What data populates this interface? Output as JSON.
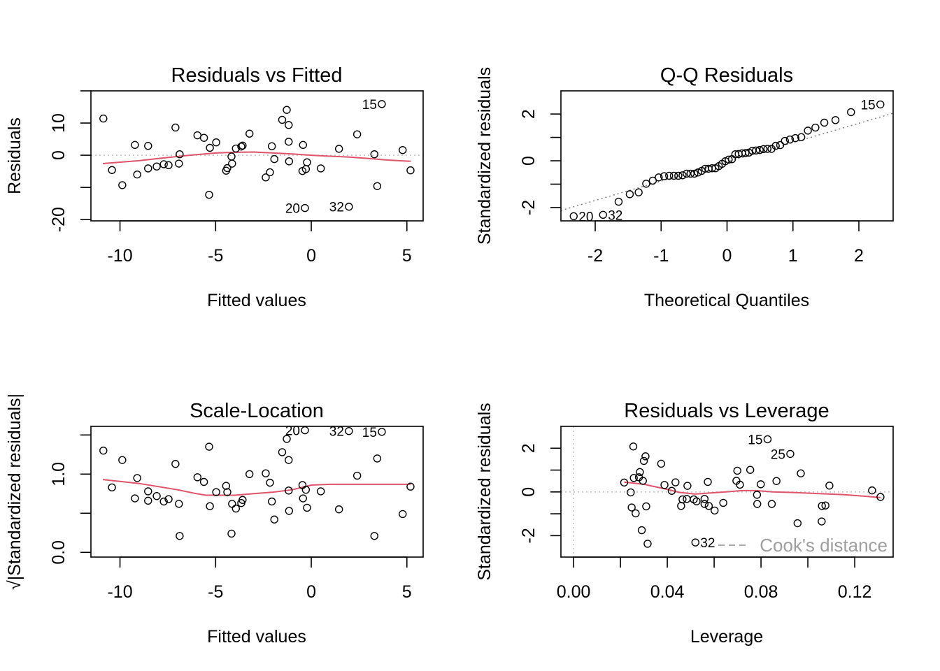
{
  "chart_data": [
    {
      "type": "scatter",
      "title": "Residuals vs Fitted",
      "xlabel": "Fitted values",
      "ylabel": "Residuals",
      "xlim": [
        -11.52,
        5.85
      ],
      "ylim": [
        -20.4,
        20.0
      ],
      "xticks": [
        -10,
        -5,
        0,
        5
      ],
      "xtick_labels": [
        "-10",
        "-5",
        "0",
        "5"
      ],
      "yticks": [
        -20,
        -10,
        0,
        10,
        20
      ],
      "ytick_labels": [
        "-20",
        "",
        "0",
        "10",
        ""
      ],
      "reference_line": {
        "type": "horizontal",
        "y": 0,
        "style": "dotted",
        "color": "#bebebe"
      },
      "smoother_color": "#df536b",
      "smoother": [
        [
          -10.9,
          -2.6
        ],
        [
          -9,
          -1.7
        ],
        [
          -8,
          -1.0
        ],
        [
          -6.5,
          -0.1
        ],
        [
          -5,
          0.7
        ],
        [
          -4,
          0.9
        ],
        [
          -3,
          1.0
        ],
        [
          -2,
          0.7
        ],
        [
          -1,
          0.4
        ],
        [
          0,
          0.0
        ],
        [
          1,
          -0.3
        ],
        [
          2,
          -0.6
        ],
        [
          3,
          -1.0
        ],
        [
          4,
          -1.5
        ],
        [
          5.2,
          -1.9
        ]
      ],
      "points": [
        {
          "x": -10.87,
          "y": 11.4
        },
        {
          "x": -10.42,
          "y": -4.6
        },
        {
          "x": -9.88,
          "y": -9.3
        },
        {
          "x": -9.22,
          "y": 3.2
        },
        {
          "x": -9.1,
          "y": -6.0
        },
        {
          "x": -8.53,
          "y": 2.9
        },
        {
          "x": -8.53,
          "y": -4.1
        },
        {
          "x": -8.08,
          "y": -3.5
        },
        {
          "x": -7.71,
          "y": -2.8
        },
        {
          "x": -7.46,
          "y": -3.1
        },
        {
          "x": -7.1,
          "y": 8.6
        },
        {
          "x": -6.88,
          "y": 0.3
        },
        {
          "x": -6.92,
          "y": -2.6
        },
        {
          "x": -5.95,
          "y": 6.2
        },
        {
          "x": -5.61,
          "y": 5.4
        },
        {
          "x": -5.34,
          "y": -12.3
        },
        {
          "x": -5.3,
          "y": 2.3
        },
        {
          "x": -4.97,
          "y": 4.0
        },
        {
          "x": -4.45,
          "y": -4.8
        },
        {
          "x": -4.39,
          "y": -4.0
        },
        {
          "x": -4.17,
          "y": -0.4
        },
        {
          "x": -4.14,
          "y": -2.6
        },
        {
          "x": -3.94,
          "y": 2.1
        },
        {
          "x": -3.66,
          "y": 2.7
        },
        {
          "x": -3.59,
          "y": 3.0
        },
        {
          "x": -3.23,
          "y": 6.7
        },
        {
          "x": -2.38,
          "y": -6.9
        },
        {
          "x": -2.16,
          "y": -5.3
        },
        {
          "x": -2.06,
          "y": 2.8
        },
        {
          "x": -1.93,
          "y": -1.2
        },
        {
          "x": -1.52,
          "y": 11.0
        },
        {
          "x": -1.28,
          "y": 14.1
        },
        {
          "x": -1.18,
          "y": 9.4
        },
        {
          "x": -1.18,
          "y": 4.2
        },
        {
          "x": -1.16,
          "y": -1.9
        },
        {
          "x": -0.43,
          "y": 3.2
        },
        {
          "x": -0.46,
          "y": -4.9
        },
        {
          "x": -0.28,
          "y": -4.3
        },
        {
          "x": -0.22,
          "y": -2.2
        },
        {
          "x": -0.33,
          "y": -16.4,
          "label": "20"
        },
        {
          "x": 0.5,
          "y": -4.1
        },
        {
          "x": 1.45,
          "y": 2.0
        },
        {
          "x": 1.97,
          "y": -16.0,
          "label": "32"
        },
        {
          "x": 2.4,
          "y": 6.5
        },
        {
          "x": 3.3,
          "y": 0.3
        },
        {
          "x": 3.45,
          "y": -9.6
        },
        {
          "x": 3.69,
          "y": 15.9,
          "label": "15"
        },
        {
          "x": 4.78,
          "y": 1.6
        },
        {
          "x": 5.19,
          "y": -4.7
        }
      ]
    },
    {
      "type": "scatter",
      "title": "Q-Q Residuals",
      "xlabel": "Theoretical Quantiles",
      "ylabel": "Standardized residuals",
      "xlim": [
        -2.52,
        2.52
      ],
      "ylim": [
        -2.57,
        2.99
      ],
      "xticks": [
        -2,
        -1,
        0,
        1,
        2
      ],
      "xtick_labels": [
        "-2",
        "-1",
        "0",
        "1",
        "2"
      ],
      "yticks": [
        -2,
        -1,
        0,
        1,
        2
      ],
      "ytick_labels": [
        "-2",
        "",
        "0",
        "",
        "2"
      ],
      "reference_line": {
        "type": "qqline",
        "style": "dotted",
        "color": "#808080"
      },
      "sample_sorted": [
        -2.37,
        -2.31,
        -1.75,
        -1.43,
        -1.35,
        -0.98,
        -0.85,
        -0.71,
        -0.66,
        -0.64,
        -0.64,
        -0.64,
        -0.62,
        -0.55,
        -0.55,
        -0.55,
        -0.5,
        -0.43,
        -0.34,
        -0.34,
        -0.32,
        -0.32,
        -0.23,
        -0.13,
        -0.02,
        0.05,
        0.07,
        0.28,
        0.29,
        0.32,
        0.33,
        0.35,
        0.43,
        0.44,
        0.46,
        0.5,
        0.51,
        0.51,
        0.64,
        0.67,
        0.85,
        0.91,
        0.97,
        1.01,
        1.29,
        1.42,
        1.63,
        1.74,
        2.08,
        2.41
      ],
      "labels": [
        {
          "rank": 1,
          "label": "20"
        },
        {
          "rank": 2,
          "label": "32"
        },
        {
          "rank": 50,
          "label": "15"
        }
      ]
    },
    {
      "type": "scatter",
      "title": "Scale-Location",
      "xlabel": "Fitted values",
      "ylabel": "√|Standardized residuals|",
      "xlim": [
        -11.52,
        5.85
      ],
      "ylim": [
        -0.06,
        1.61
      ],
      "xticks": [
        -10,
        -5,
        0,
        5
      ],
      "xtick_labels": [
        "-10",
        "-5",
        "0",
        "5"
      ],
      "yticks": [
        0,
        0.5,
        1.0,
        1.5
      ],
      "ytick_labels": [
        "0.0",
        "",
        "1.0",
        ""
      ],
      "smoother_color": "#df536b",
      "smoother": [
        [
          -10.9,
          0.93
        ],
        [
          -9,
          0.88
        ],
        [
          -8,
          0.84
        ],
        [
          -7,
          0.8
        ],
        [
          -6,
          0.75
        ],
        [
          -5.5,
          0.73
        ],
        [
          -4,
          0.73
        ],
        [
          -3,
          0.75
        ],
        [
          -2,
          0.77
        ],
        [
          -1,
          0.8
        ],
        [
          0,
          0.86
        ],
        [
          1,
          0.87
        ],
        [
          2,
          0.87
        ],
        [
          3.5,
          0.87
        ],
        [
          5.2,
          0.87
        ]
      ],
      "points": [
        {
          "x": -10.87,
          "y": 1.3
        },
        {
          "x": -10.42,
          "y": 0.83
        },
        {
          "x": -9.88,
          "y": 1.18
        },
        {
          "x": -9.22,
          "y": 0.69
        },
        {
          "x": -9.1,
          "y": 0.95
        },
        {
          "x": -8.53,
          "y": 0.66
        },
        {
          "x": -8.53,
          "y": 0.78
        },
        {
          "x": -8.08,
          "y": 0.72
        },
        {
          "x": -7.71,
          "y": 0.65
        },
        {
          "x": -7.46,
          "y": 0.68
        },
        {
          "x": -7.1,
          "y": 1.13
        },
        {
          "x": -6.88,
          "y": 0.21
        },
        {
          "x": -6.92,
          "y": 0.62
        },
        {
          "x": -5.95,
          "y": 0.96
        },
        {
          "x": -5.61,
          "y": 0.9
        },
        {
          "x": -5.34,
          "y": 1.35
        },
        {
          "x": -5.3,
          "y": 0.59
        },
        {
          "x": -4.97,
          "y": 0.77
        },
        {
          "x": -4.45,
          "y": 0.85
        },
        {
          "x": -4.39,
          "y": 0.77
        },
        {
          "x": -4.17,
          "y": 0.24
        },
        {
          "x": -4.14,
          "y": 0.62
        },
        {
          "x": -3.94,
          "y": 0.56
        },
        {
          "x": -3.66,
          "y": 0.63
        },
        {
          "x": -3.59,
          "y": 0.67
        },
        {
          "x": -3.23,
          "y": 1.0
        },
        {
          "x": -2.38,
          "y": 1.01
        },
        {
          "x": -2.16,
          "y": 0.89
        },
        {
          "x": -2.06,
          "y": 0.65
        },
        {
          "x": -1.93,
          "y": 0.42
        },
        {
          "x": -1.52,
          "y": 1.28
        },
        {
          "x": -1.28,
          "y": 1.45
        },
        {
          "x": -1.18,
          "y": 1.18
        },
        {
          "x": -1.18,
          "y": 0.79
        },
        {
          "x": -1.16,
          "y": 0.53
        },
        {
          "x": -0.43,
          "y": 0.69
        },
        {
          "x": -0.46,
          "y": 0.86
        },
        {
          "x": -0.28,
          "y": 0.8
        },
        {
          "x": -0.22,
          "y": 0.57
        },
        {
          "x": -0.33,
          "y": 1.56,
          "label": "20"
        },
        {
          "x": 0.5,
          "y": 0.78
        },
        {
          "x": 1.45,
          "y": 0.55
        },
        {
          "x": 1.97,
          "y": 1.55,
          "label": "32"
        },
        {
          "x": 2.4,
          "y": 0.98
        },
        {
          "x": 3.3,
          "y": 0.21
        },
        {
          "x": 3.45,
          "y": 1.2
        },
        {
          "x": 3.69,
          "y": 1.54,
          "label": "15"
        },
        {
          "x": 4.78,
          "y": 0.49
        },
        {
          "x": 5.19,
          "y": 0.84
        }
      ]
    },
    {
      "type": "scatter",
      "title": "Residuals vs Leverage",
      "xlabel": "Leverage",
      "ylabel": "Standardized residuals",
      "xlim": [
        -0.0054,
        0.1364
      ],
      "ylim": [
        -2.98,
        3.0
      ],
      "xticks": [
        0,
        0.02,
        0.04,
        0.06,
        0.08,
        0.1,
        0.12
      ],
      "xtick_labels": [
        "0.00",
        "",
        "0.04",
        "",
        "0.08",
        "",
        "0.12"
      ],
      "yticks": [
        -2,
        -1,
        0,
        1,
        2
      ],
      "ytick_labels": [
        "-2",
        "",
        "0",
        "",
        "2"
      ],
      "reference_lines": [
        {
          "type": "horizontal",
          "y": 0,
          "style": "dotted",
          "color": "#bebebe"
        },
        {
          "type": "vertical",
          "x": 0,
          "style": "dotted",
          "color": "#bebebe"
        }
      ],
      "legend": {
        "label": "Cook's distance",
        "style": "dashed",
        "color": "#9e9e9e",
        "position": "bottom-left"
      },
      "smoother_color": "#df536b",
      "smoother": [
        [
          0.0216,
          0.45
        ],
        [
          0.03,
          0.35
        ],
        [
          0.04,
          0.12
        ],
        [
          0.045,
          -0.02
        ],
        [
          0.052,
          -0.1
        ],
        [
          0.058,
          -0.05
        ],
        [
          0.065,
          0.0
        ],
        [
          0.072,
          0.06
        ],
        [
          0.078,
          0.06
        ],
        [
          0.085,
          0.0
        ],
        [
          0.095,
          -0.03
        ],
        [
          0.105,
          -0.08
        ],
        [
          0.115,
          -0.12
        ],
        [
          0.125,
          -0.2
        ],
        [
          0.131,
          -0.26
        ]
      ],
      "points": [
        {
          "x": 0.0255,
          "y": 2.08
        },
        {
          "x": 0.0307,
          "y": 1.63
        },
        {
          "x": 0.03,
          "y": 1.42
        },
        {
          "x": 0.0374,
          "y": 1.29
        },
        {
          "x": 0.0283,
          "y": 0.91
        },
        {
          "x": 0.0257,
          "y": 0.64
        },
        {
          "x": 0.0279,
          "y": 0.67
        },
        {
          "x": 0.0296,
          "y": 0.51
        },
        {
          "x": 0.0216,
          "y": 0.43
        },
        {
          "x": 0.0244,
          "y": -0.02
        },
        {
          "x": 0.0248,
          "y": -0.71
        },
        {
          "x": 0.0265,
          "y": -0.98
        },
        {
          "x": 0.031,
          "y": -0.66
        },
        {
          "x": 0.0291,
          "y": -1.75
        },
        {
          "x": 0.0316,
          "y": -2.37
        },
        {
          "x": 0.0388,
          "y": 0.32
        },
        {
          "x": 0.0419,
          "y": 0.05
        },
        {
          "x": 0.0435,
          "y": 0.44
        },
        {
          "x": 0.0486,
          "y": 0.28
        },
        {
          "x": 0.0465,
          "y": -0.34
        },
        {
          "x": 0.0459,
          "y": -0.64
        },
        {
          "x": 0.0483,
          "y": -0.32
        },
        {
          "x": 0.0513,
          "y": -0.34
        },
        {
          "x": 0.0525,
          "y": -0.43
        },
        {
          "x": 0.052,
          "y": -2.31,
          "label": "32"
        },
        {
          "x": 0.0559,
          "y": -0.32
        },
        {
          "x": 0.0559,
          "y": -0.55
        },
        {
          "x": 0.0577,
          "y": -0.64
        },
        {
          "x": 0.0573,
          "y": 0.46
        },
        {
          "x": 0.0602,
          "y": -0.85
        },
        {
          "x": 0.0639,
          "y": -0.5
        },
        {
          "x": 0.0699,
          "y": 0.97
        },
        {
          "x": 0.0695,
          "y": 0.51
        },
        {
          "x": 0.071,
          "y": 0.33
        },
        {
          "x": 0.0754,
          "y": 1.01
        },
        {
          "x": 0.0783,
          "y": -0.13
        },
        {
          "x": 0.0784,
          "y": -0.55
        },
        {
          "x": 0.0799,
          "y": 0.35
        },
        {
          "x": 0.0828,
          "y": 2.41,
          "label": "15"
        },
        {
          "x": 0.0846,
          "y": -0.55
        },
        {
          "x": 0.0866,
          "y": 0.5
        },
        {
          "x": 0.0925,
          "y": 1.74,
          "label": "25"
        },
        {
          "x": 0.097,
          "y": 0.85
        },
        {
          "x": 0.0956,
          "y": -1.43
        },
        {
          "x": 0.106,
          "y": -0.64
        },
        {
          "x": 0.1075,
          "y": -0.62
        },
        {
          "x": 0.1059,
          "y": -1.35
        },
        {
          "x": 0.1092,
          "y": 0.29
        },
        {
          "x": 0.1274,
          "y": 0.07
        },
        {
          "x": 0.131,
          "y": -0.23
        }
      ]
    }
  ]
}
